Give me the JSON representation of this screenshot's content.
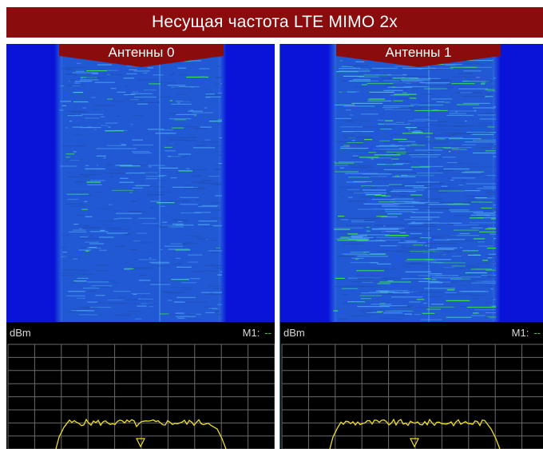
{
  "title": "Несущая частота LTE MIMO 2x",
  "colors": {
    "banner": "#8b0c0c",
    "spectrum_blue": "#1a4fd6",
    "background_blue": "#0a14d8",
    "signal_green": "#3be84a",
    "trace_yellow": "#f0e020",
    "grid": "#6a6a6a"
  },
  "panels": [
    {
      "antenna_label": "Антенны 0",
      "unit_label": "dBm",
      "marker_label": "M1:",
      "marker_value": "--"
    },
    {
      "antenna_label": "Антенны 1",
      "unit_label": "dBm",
      "marker_label": "M1:",
      "marker_value": "--"
    }
  ]
}
